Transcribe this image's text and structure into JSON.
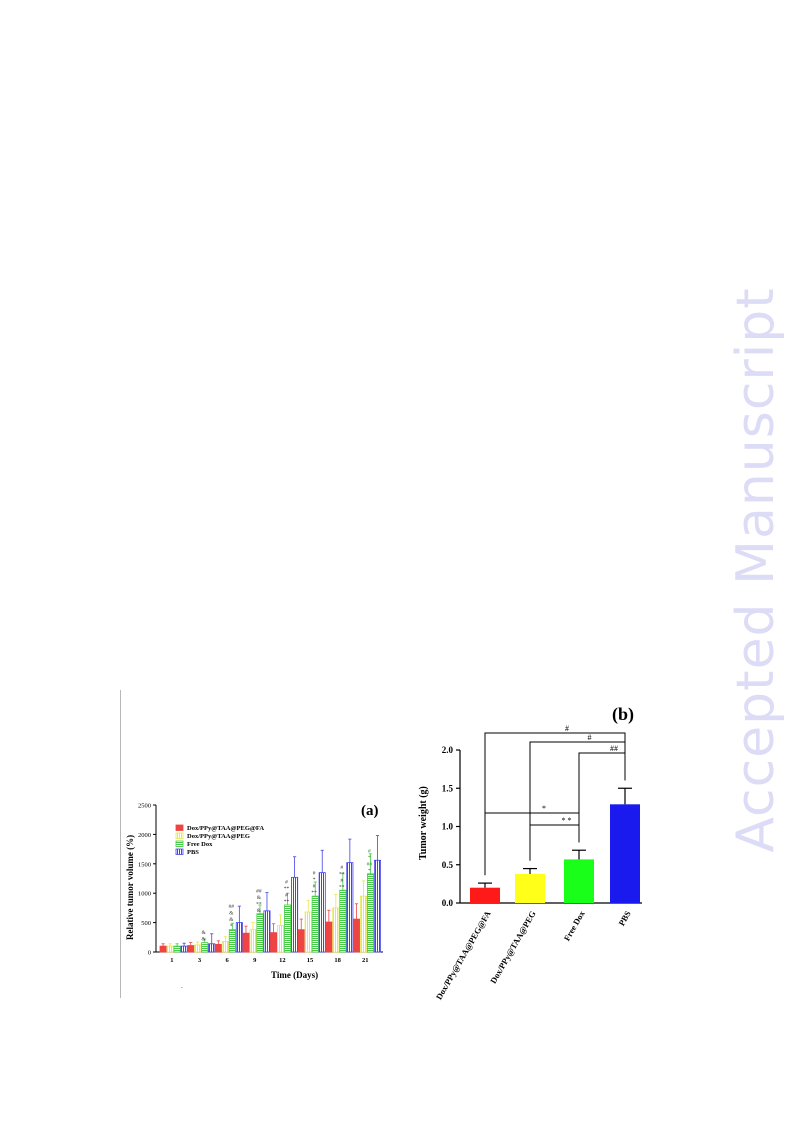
{
  "watermark": "Accepted Manuscript",
  "chart_data": [
    {
      "panel_label": "(a)",
      "type": "bar",
      "xlabel": "Time (Days)",
      "ylabel": "Relative tumor volume (%)",
      "categories": [
        "1",
        "3",
        "6",
        "9",
        "12",
        "15",
        "18",
        "21"
      ],
      "ylim": [
        0,
        2500
      ],
      "yticks": [
        0,
        500,
        1000,
        1500,
        2000,
        2500
      ],
      "legend_position": "top-left",
      "series": [
        {
          "name": "Dox/PPy@TAA@PEG@FA",
          "color": "#ee4444",
          "fill": "solid",
          "values": [
            100,
            110,
            130,
            320,
            330,
            380,
            510,
            560
          ],
          "errors": [
            40,
            50,
            60,
            120,
            150,
            180,
            200,
            260
          ]
        },
        {
          "name": "Dox/PPy@TAA@PEG",
          "color": "#e8e84a",
          "fill": "vlines",
          "values": [
            100,
            120,
            180,
            380,
            450,
            680,
            750,
            950
          ],
          "errors": [
            40,
            50,
            80,
            120,
            180,
            200,
            230,
            260
          ]
        },
        {
          "name": "Free Dox",
          "color": "#44cc44",
          "fill": "hlines",
          "values": [
            100,
            160,
            380,
            650,
            800,
            950,
            1050,
            1330
          ],
          "errors": [
            40,
            60,
            110,
            150,
            200,
            240,
            280,
            340
          ]
        },
        {
          "name": "PBS",
          "color": "#4444ee",
          "fill": "vlines",
          "values": [
            100,
            140,
            500,
            700,
            1270,
            1350,
            1520,
            1560
          ],
          "errors": [
            50,
            170,
            280,
            310,
            350,
            380,
            400,
            420
          ]
        }
      ],
      "annotations": [
        {
          "category": "3",
          "lines": [
            "&",
            "&"
          ],
          "color": "#333333"
        },
        {
          "category": "6",
          "lines": [
            "##",
            "&",
            "&",
            "*"
          ],
          "color": "#333333"
        },
        {
          "category": "9",
          "lines": [
            "##",
            "&",
            "**",
            "&"
          ],
          "color": "#333333"
        },
        {
          "category": "12",
          "lines": [
            "#",
            "**",
            "#",
            "**"
          ],
          "color": "#333333"
        },
        {
          "category": "15",
          "lines": [
            "#",
            "*",
            "#",
            "**"
          ],
          "color": "#333333"
        },
        {
          "category": "18",
          "lines": [
            "#",
            "**",
            "#",
            "**"
          ],
          "color": "#333333"
        },
        {
          "category": "21",
          "lines": [
            "#",
            "*",
            "##",
            "*"
          ],
          "color": "#2a8a2a"
        }
      ]
    },
    {
      "panel_label": "(b)",
      "type": "bar",
      "ylabel": "Tumor weight (g)",
      "categories": [
        "Dox/PPy@TAA@PEG@FA",
        "Dox/PPy@TAA@PEG",
        "Free Dox",
        "PBS"
      ],
      "values": [
        0.2,
        0.38,
        0.57,
        1.29
      ],
      "errors": [
        0.06,
        0.07,
        0.12,
        0.21
      ],
      "colors": [
        "#ff1a1a",
        "#ffff1a",
        "#1aff1a",
        "#1a1aee"
      ],
      "ylim": [
        0,
        2.0
      ],
      "yticks": [
        "0.0",
        "0.5",
        "1.0",
        "1.5",
        "2.0"
      ],
      "significance": [
        {
          "from": 0,
          "to": 3,
          "label": "#"
        },
        {
          "from": 1,
          "to": 3,
          "label": "#"
        },
        {
          "from": 2,
          "to": 3,
          "label": "##"
        },
        {
          "from": 0,
          "to": 2,
          "label": "*"
        },
        {
          "from": 1,
          "to": 2,
          "label": "* *"
        }
      ]
    }
  ]
}
